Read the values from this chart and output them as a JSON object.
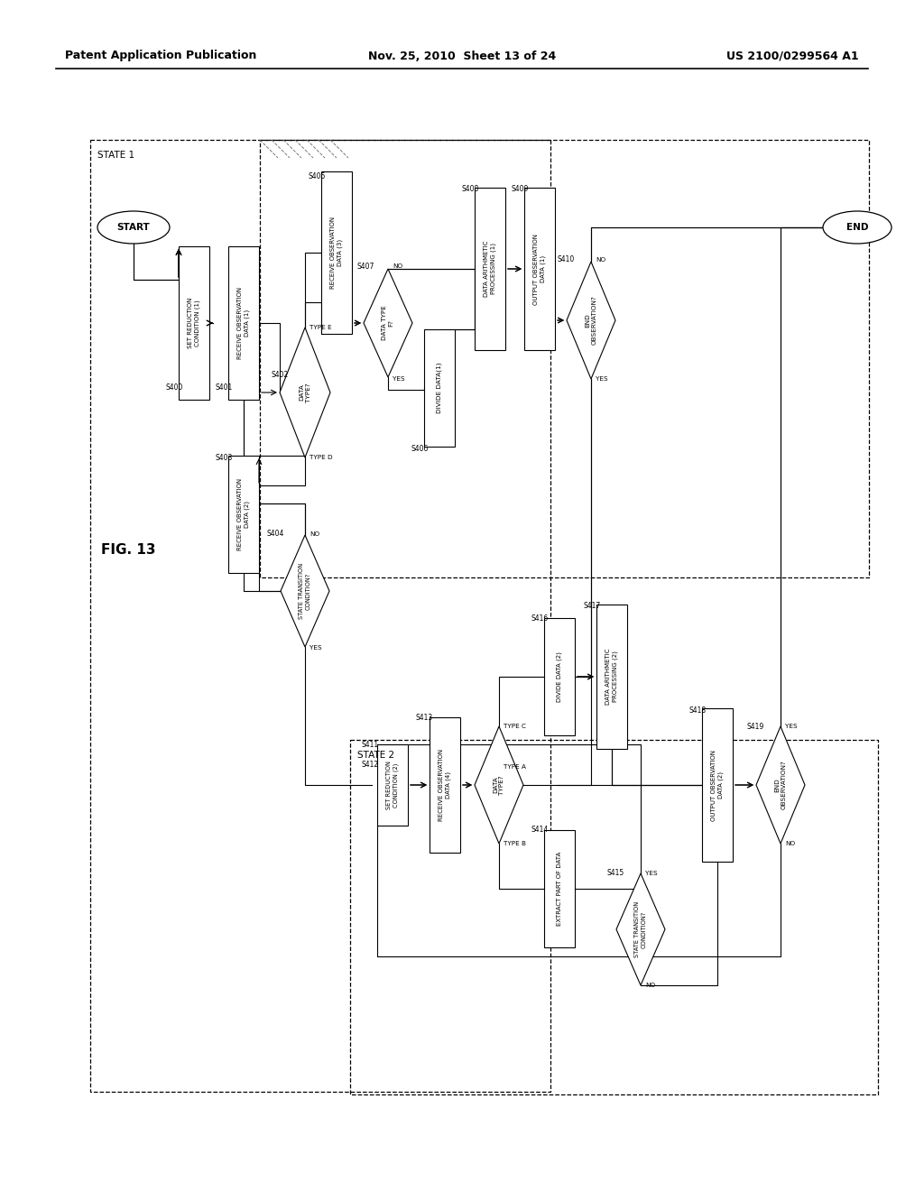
{
  "bg": "#ffffff",
  "header_left": "Patent Application Publication",
  "header_mid": "Nov. 25, 2010  Sheet 13 of 24",
  "header_right": "US 2100/0299564 A1",
  "fig_label": "FIG. 13"
}
